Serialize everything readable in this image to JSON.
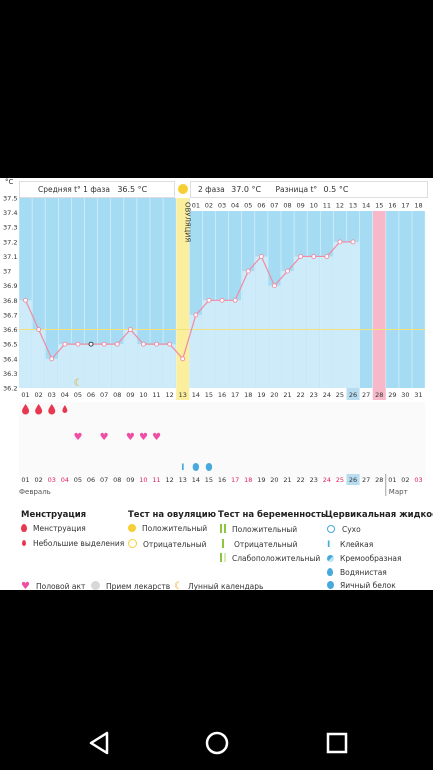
{
  "header": {
    "unit": "°C",
    "avg_phase1_label": "Средняя t° 1 фаза",
    "avg_phase1_value": "36.5 °C",
    "phase2_label": "2 фаза",
    "phase2_value": "37.0 °C",
    "diff_label": "Разница t°",
    "diff_value": "0.5 °C",
    "ovulation_label": "ОВУЛЯЦИЯ"
  },
  "chart_data": {
    "type": "line",
    "ylim": [
      36.2,
      37.5
    ],
    "yticks": [
      "37.5",
      "37.4",
      "37.3",
      "37.2",
      "37.1",
      "37",
      "36.9",
      "36.8",
      "36.7",
      "36.6",
      "36.5",
      "36.4",
      "36.3",
      "36.2"
    ],
    "cycle_days": [
      "01",
      "02",
      "03",
      "04",
      "05",
      "06",
      "07",
      "08",
      "09",
      "10",
      "11",
      "12",
      "13",
      "14",
      "15",
      "16",
      "17",
      "18",
      "19",
      "20",
      "21",
      "22",
      "23",
      "24",
      "25",
      "26",
      "27",
      "28",
      "29",
      "30",
      "31"
    ],
    "phase2_days": [
      "01",
      "02",
      "03",
      "04",
      "05",
      "06",
      "07",
      "08",
      "09",
      "10",
      "11",
      "12",
      "13",
      "14",
      "15",
      "16",
      "17",
      "18"
    ],
    "temperatures": [
      36.8,
      36.6,
      36.4,
      36.5,
      36.5,
      36.5,
      36.5,
      36.5,
      36.6,
      36.5,
      36.5,
      36.5,
      36.4,
      36.7,
      36.8,
      36.8,
      36.8,
      37.0,
      37.1,
      36.9,
      37.0,
      37.1,
      37.1,
      37.1,
      37.2,
      37.2
    ],
    "coverline": 36.6,
    "ovulation_day_index": 13,
    "today_index": 26,
    "expected_period_index": 28,
    "calendar_dates": [
      "01",
      "02",
      "03",
      "04",
      "05",
      "06",
      "07",
      "08",
      "09",
      "10",
      "11",
      "12",
      "13",
      "14",
      "15",
      "16",
      "17",
      "18",
      "19",
      "20",
      "21",
      "22",
      "23",
      "24",
      "25",
      "26",
      "27",
      "28",
      "01",
      "02",
      "03"
    ],
    "weekend_dates": [
      3,
      4,
      10,
      11,
      17,
      18,
      24,
      25,
      31
    ],
    "months": {
      "left": "Февраль",
      "right": "Март"
    }
  },
  "markers": {
    "menstruation_days": [
      1,
      2,
      3
    ],
    "light_bleeding_days": [
      4
    ],
    "intercourse_days": [
      5,
      7,
      9,
      10,
      11
    ],
    "moon_day": 5,
    "sticky_day": 13,
    "watery_days": [
      14,
      15
    ]
  },
  "colors": {
    "chart_bg": "#a5dcf4",
    "bars": "#cdebf9",
    "line": "#ef8ba3",
    "ovulation": "#fbee9d",
    "period": "#f7b8c9",
    "highlight": "#b8ddf1",
    "menstruation": "#e8384f",
    "heart": "#f04ea4",
    "positive_test": "#f6cf35",
    "preg_test": "#8cc63f",
    "cervical": "#47a9dc"
  },
  "legend": {
    "menstruation": {
      "title": "Менструация",
      "items": [
        "Менструация",
        "Небольшие выделения"
      ]
    },
    "ovulation_test": {
      "title": "Тест на овуляцию",
      "items": [
        "Положительный",
        "Отрицательный"
      ]
    },
    "pregnancy_test": {
      "title": "Тест на беременность",
      "items": [
        "Положительный",
        "Отрицательный",
        "Слабоположительный"
      ]
    },
    "cervical": {
      "title": "Цервикальная жидкость",
      "items": [
        "Сухо",
        "Клейкая",
        "Кремообразная",
        "Водянистая",
        "Яичный белок"
      ]
    },
    "bottom": [
      "Половой акт",
      "Прием лекарств",
      "Лунный календарь"
    ]
  }
}
